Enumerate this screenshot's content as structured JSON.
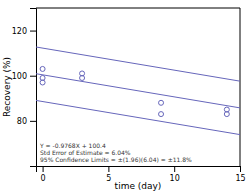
{
  "chart_data": {
    "type": "line",
    "xlabel": "time (day)",
    "ylabel": "Recovery (%)",
    "xlim": [
      -0.5,
      15
    ],
    "ylim": [
      60,
      130
    ],
    "xticks": [
      0,
      5,
      10,
      15
    ],
    "yticks": [
      80,
      100,
      120
    ],
    "grid": false,
    "annotation": "Y = -0.9768X + 100.4\nStd Error of Estimate = 6.04%\n95% Confidence Limits = ±(1.96)(6.04) = ±11.8%",
    "series": [
      {
        "type": "line",
        "line_style": "solid",
        "color": "#6666bb",
        "x": [
          -0.5,
          15
        ],
        "values": [
          112.7268,
          97.5864
        ]
      },
      {
        "type": "line",
        "line_style": "solid",
        "color": "#6666bb",
        "x": [
          -0.5,
          15
        ],
        "values": [
          100.8884,
          85.748
        ]
      },
      {
        "type": "line",
        "line_style": "solid",
        "color": "#6666bb",
        "x": [
          -0.5,
          15
        ],
        "values": [
          89.05,
          73.9096
        ]
      },
      {
        "type": "scatter",
        "marker": "circle",
        "color": "#6666bb",
        "x": [
          0,
          0,
          0,
          3,
          3,
          9,
          9,
          14,
          14
        ],
        "values": [
          103,
          99,
          97,
          101,
          99,
          88,
          83,
          85,
          83
        ]
      }
    ]
  }
}
